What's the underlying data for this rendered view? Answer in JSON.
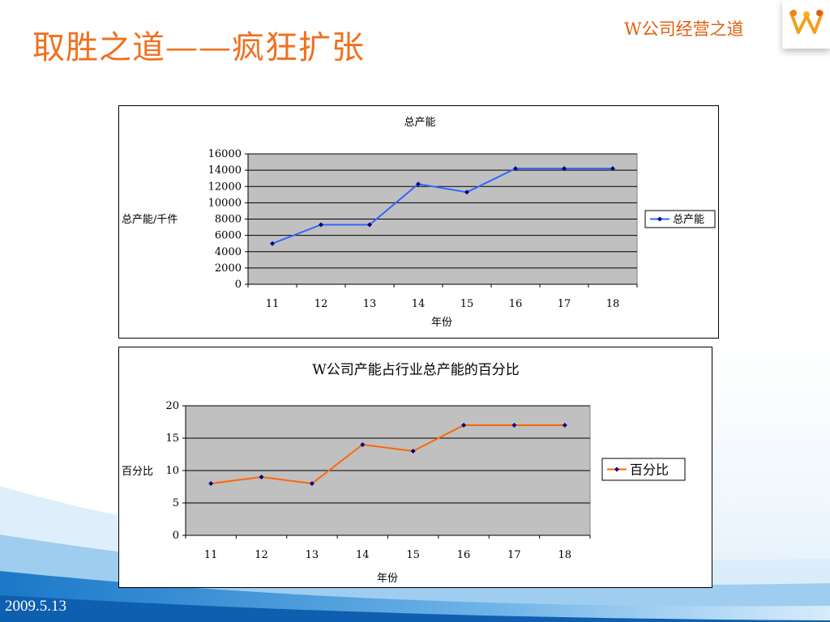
{
  "slide": {
    "title": "取胜之道——疯狂扩张",
    "brand": "W公司经营之道",
    "date": "2009.5.13"
  },
  "colors": {
    "title": "#f07020",
    "plot_bg": "#c0c0c0",
    "series1": "#3366ff",
    "series2": "#ff6600",
    "marker": "#000080"
  },
  "chart_data": [
    {
      "type": "line",
      "title": "总产能",
      "xlabel": "年份",
      "ylabel": "总产能/千件",
      "categories": [
        "11",
        "12",
        "13",
        "14",
        "15",
        "16",
        "17",
        "18"
      ],
      "series": [
        {
          "name": "总产能",
          "values": [
            5000,
            7300,
            7300,
            12300,
            11300,
            14200,
            14200,
            14200
          ]
        }
      ],
      "ylim": [
        0,
        16000
      ],
      "yticks": [
        "0",
        "2000",
        "4000",
        "6000",
        "8000",
        "10000",
        "12000",
        "14000",
        "16000"
      ],
      "grid": true,
      "legend": "right"
    },
    {
      "type": "line",
      "title": "W公司产能占行业总产能的百分比",
      "xlabel": "年份",
      "ylabel": "百分比",
      "categories": [
        "11",
        "12",
        "13",
        "14",
        "15",
        "16",
        "17",
        "18"
      ],
      "series": [
        {
          "name": "百分比",
          "values": [
            8,
            9,
            8,
            14,
            13,
            17,
            17,
            17
          ]
        }
      ],
      "ylim": [
        0,
        20
      ],
      "yticks": [
        "0",
        "5",
        "10",
        "15",
        "20"
      ],
      "grid": true,
      "legend": "right"
    }
  ]
}
